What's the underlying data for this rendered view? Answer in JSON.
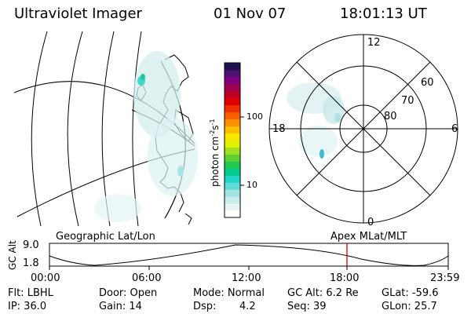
{
  "header": {
    "title": "Ultraviolet Imager",
    "date": "01 Nov 07",
    "time": "18:01:13 UT"
  },
  "colorbar": {
    "unit_prefix": "photon cm",
    "unit_exp1": "-2",
    "unit_mid": "s",
    "unit_exp2": "-1",
    "ticks": [
      "100",
      "10"
    ],
    "colors": [
      "#ffffff",
      "#e8f4f4",
      "#c8ecec",
      "#a0e4e4",
      "#60dcd8",
      "#20d4c8",
      "#00cc90",
      "#20c850",
      "#60d030",
      "#a0e020",
      "#e0f000",
      "#f8e800",
      "#f8c000",
      "#f89000",
      "#f86000",
      "#f03000",
      "#e00000",
      "#c00020",
      "#a00050",
      "#800080",
      "#501070",
      "#201050"
    ]
  },
  "polar": {
    "labels": {
      "top": "12",
      "bottom": "0",
      "left": "18",
      "right": "6"
    },
    "rings": [
      "60",
      "70",
      "80"
    ]
  },
  "timeline": {
    "left_label": "Geographic Lat/Lon",
    "right_label": "Apex MLat/MLT",
    "axis_title": "GC Alt",
    "y_max": "9.0",
    "y_min": "1.8",
    "current_time": "18:00",
    "x_ticks": [
      "00:00",
      "06:00",
      "12:00",
      "18:00",
      "23:59"
    ]
  },
  "info": {
    "filter": "Flt: LBHL",
    "door": "Door: Open",
    "mode": "Mode: Normal",
    "gc_alt": "GC Alt: 6.2 Re",
    "glat": "GLat: -59.6",
    "ip": "IP: 36.0",
    "gain": "Gain: 14",
    "dsp_label": "Dsp:",
    "dsp_value": "4.2",
    "seq": "Seq: 39",
    "glon": "GLon: 25.7"
  }
}
